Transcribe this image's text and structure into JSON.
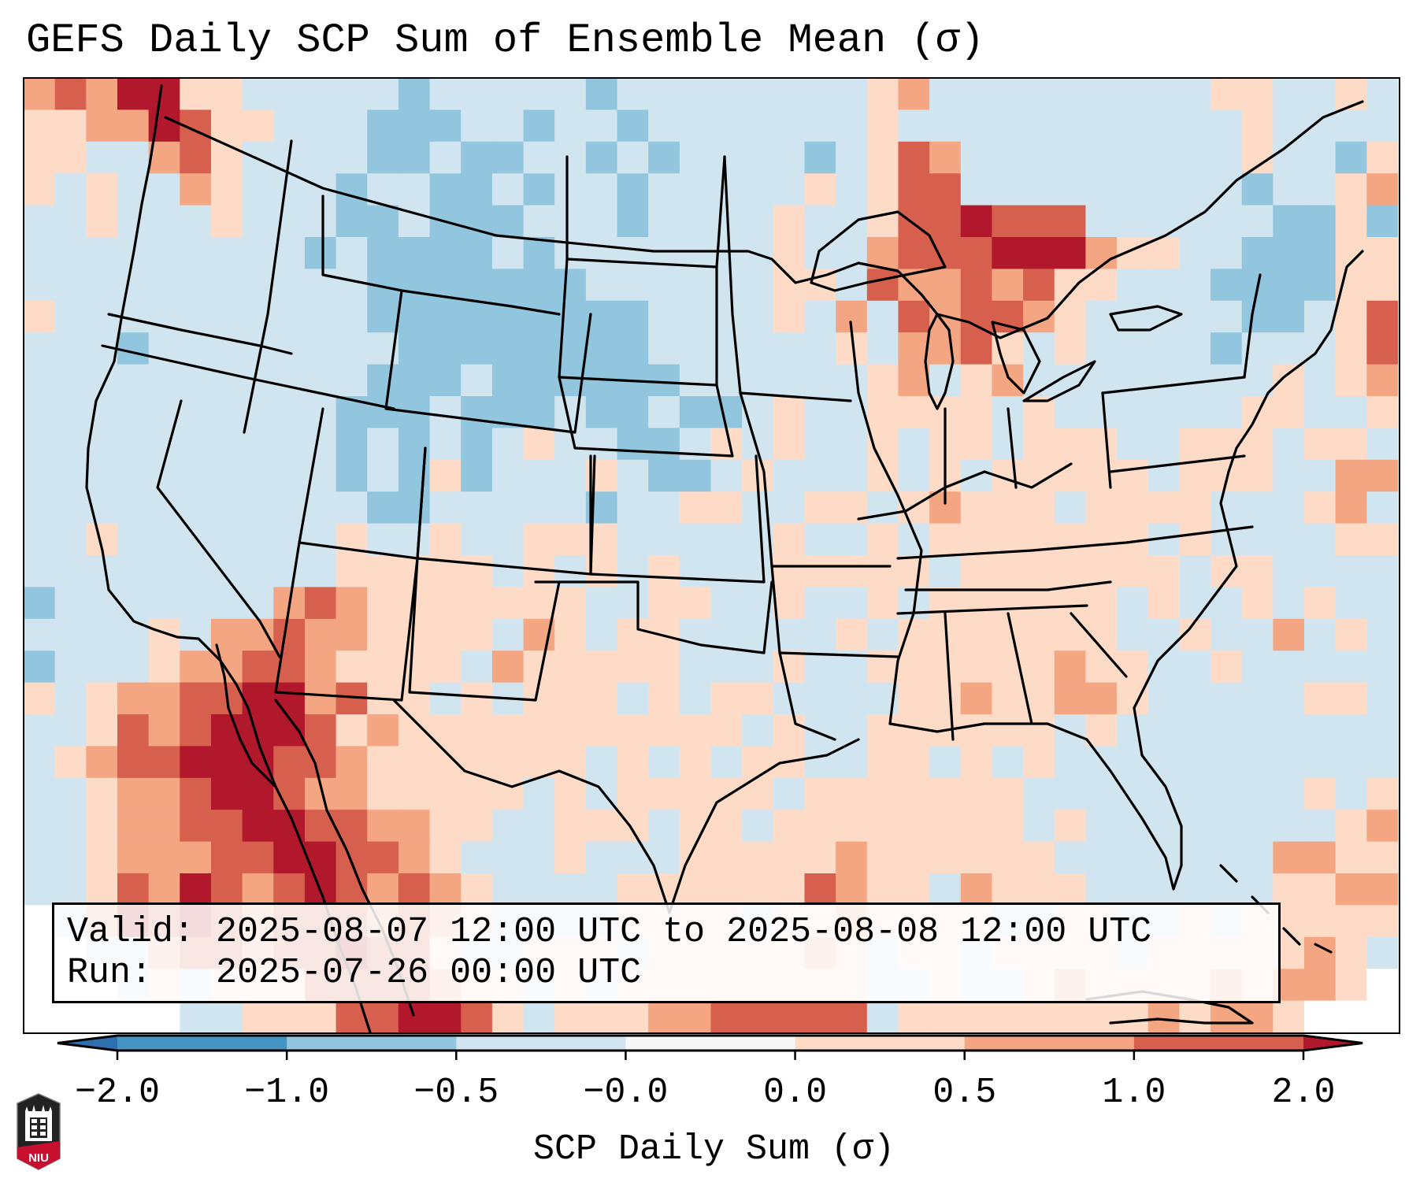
{
  "title": "GEFS Daily SCP Sum of Ensemble Mean (σ)",
  "info": {
    "valid_line": "Valid: 2025-08-07 12:00 UTC to 2025-08-08 12:00 UTC",
    "run_line": "Run:   2025-07-26 00:00 UTC"
  },
  "logo": {
    "text": "NIU",
    "name": "Northern Illinois University"
  },
  "chart_data": {
    "type": "heatmap",
    "title": "GEFS Daily SCP Sum of Ensemble Mean (σ)",
    "region": "Contiguous United States",
    "colorbar": {
      "label": "SCP Daily Sum (σ)",
      "orientation": "horizontal",
      "extend": "both",
      "boundaries": [
        -2.0,
        -1.0,
        -0.5,
        -0.0,
        0.0,
        0.5,
        1.0,
        2.0
      ],
      "tick_labels": [
        "−2.0",
        "−1.0",
        "−0.5",
        "−0.0",
        "0.0",
        "0.5",
        "1.0",
        "2.0"
      ],
      "colors": {
        "under": "#2e6fb0",
        "-2.0_to_-1.0": "#4393c3",
        "-1.0_to_-0.5": "#92c5de",
        "-0.5_to_-0.0": "#d1e5f0",
        "-0.0_to_0.0": "#f7f7f7",
        "0.0_to_0.5": "#fddbc7",
        "0.5_to_1.0": "#f4a582",
        "1.0_to_2.0": "#d6604d",
        "over": "#b2182b"
      }
    },
    "grid_legend": {
      "b": "-1.0 to -0.5",
      ".": "-0.5 to -0.0",
      "1": "0.0 to 0.5",
      "2": "0.5 to 1.0",
      "3": "1.0 to 2.0",
      "4": "above 2.0",
      "w": "outside domain"
    },
    "grid": [
      "2324411.....b.....b........12.........11..1.",
      "11224311...bbb..b..b.......1...........1....",
      "11..231....bb.bb..b.b....b.132.........1..b1",
      "1.1..21...b..bb.b..b.....1.133.........b..12",
      "..1...1...bb.bbb...b....1..1334333......bb1b",
      ".........b.bbbb.b.......1..2333444211..bbb11",
      "...........bbbbbbb......11.32232311...bbbb11",
      "1..........bbbbbbbbb....1.2.323321.....bb.13",
      "...b........bbbbbbbb......1.2231.1....b...13",
      "...........bbb.bbbbbb......12.12........1.12",
      "..........bbb.bbb.bb.bb.1..1111.1......11..1",
      "..........b.b.b.1..bb.1.1..1.11.111..111.11.",
      "..........b.b1b...1.bb.1...1.1.11111.111..22",
      "...........bb.....b..11..11.12111.1111...12.",
      "..1.......1..1..111.....1..1.1111111.1....11",
      "..........11111.1.1.1...11111.1111111.11....",
      "b.......2321111111..11..1..1.111111.1..1.1..",
      "....1.223221111.21.11.....1.1111111..1..2.1.",
      "b...1223321111.211111...1..111111211..1.....",
      "1.12233442311.1.111.1.11....11211221.....11.",
      "..132344431211111111111.1..111111.1..........",
      ".12334443321111111.1.1.11..11.1.1...........1",
      "..12234432211111.1.11111.1111111.........1.11",
      "..1223344332211..111.11.11111111.1........12.",
      "..122233443321...1...111112111111.......2211",
      "..1324323432321....1111113211.2111......1122",
      "w.2434323332321....1111.1121111..11..1.11111",
      "ww..2332334331..111.1111121.11.1111.1111121.",
      "www.1.1113333211.1.11111111..1..12111121221w",
      "wwwww..111334431.1112233333.1111111121221www"
    ]
  }
}
